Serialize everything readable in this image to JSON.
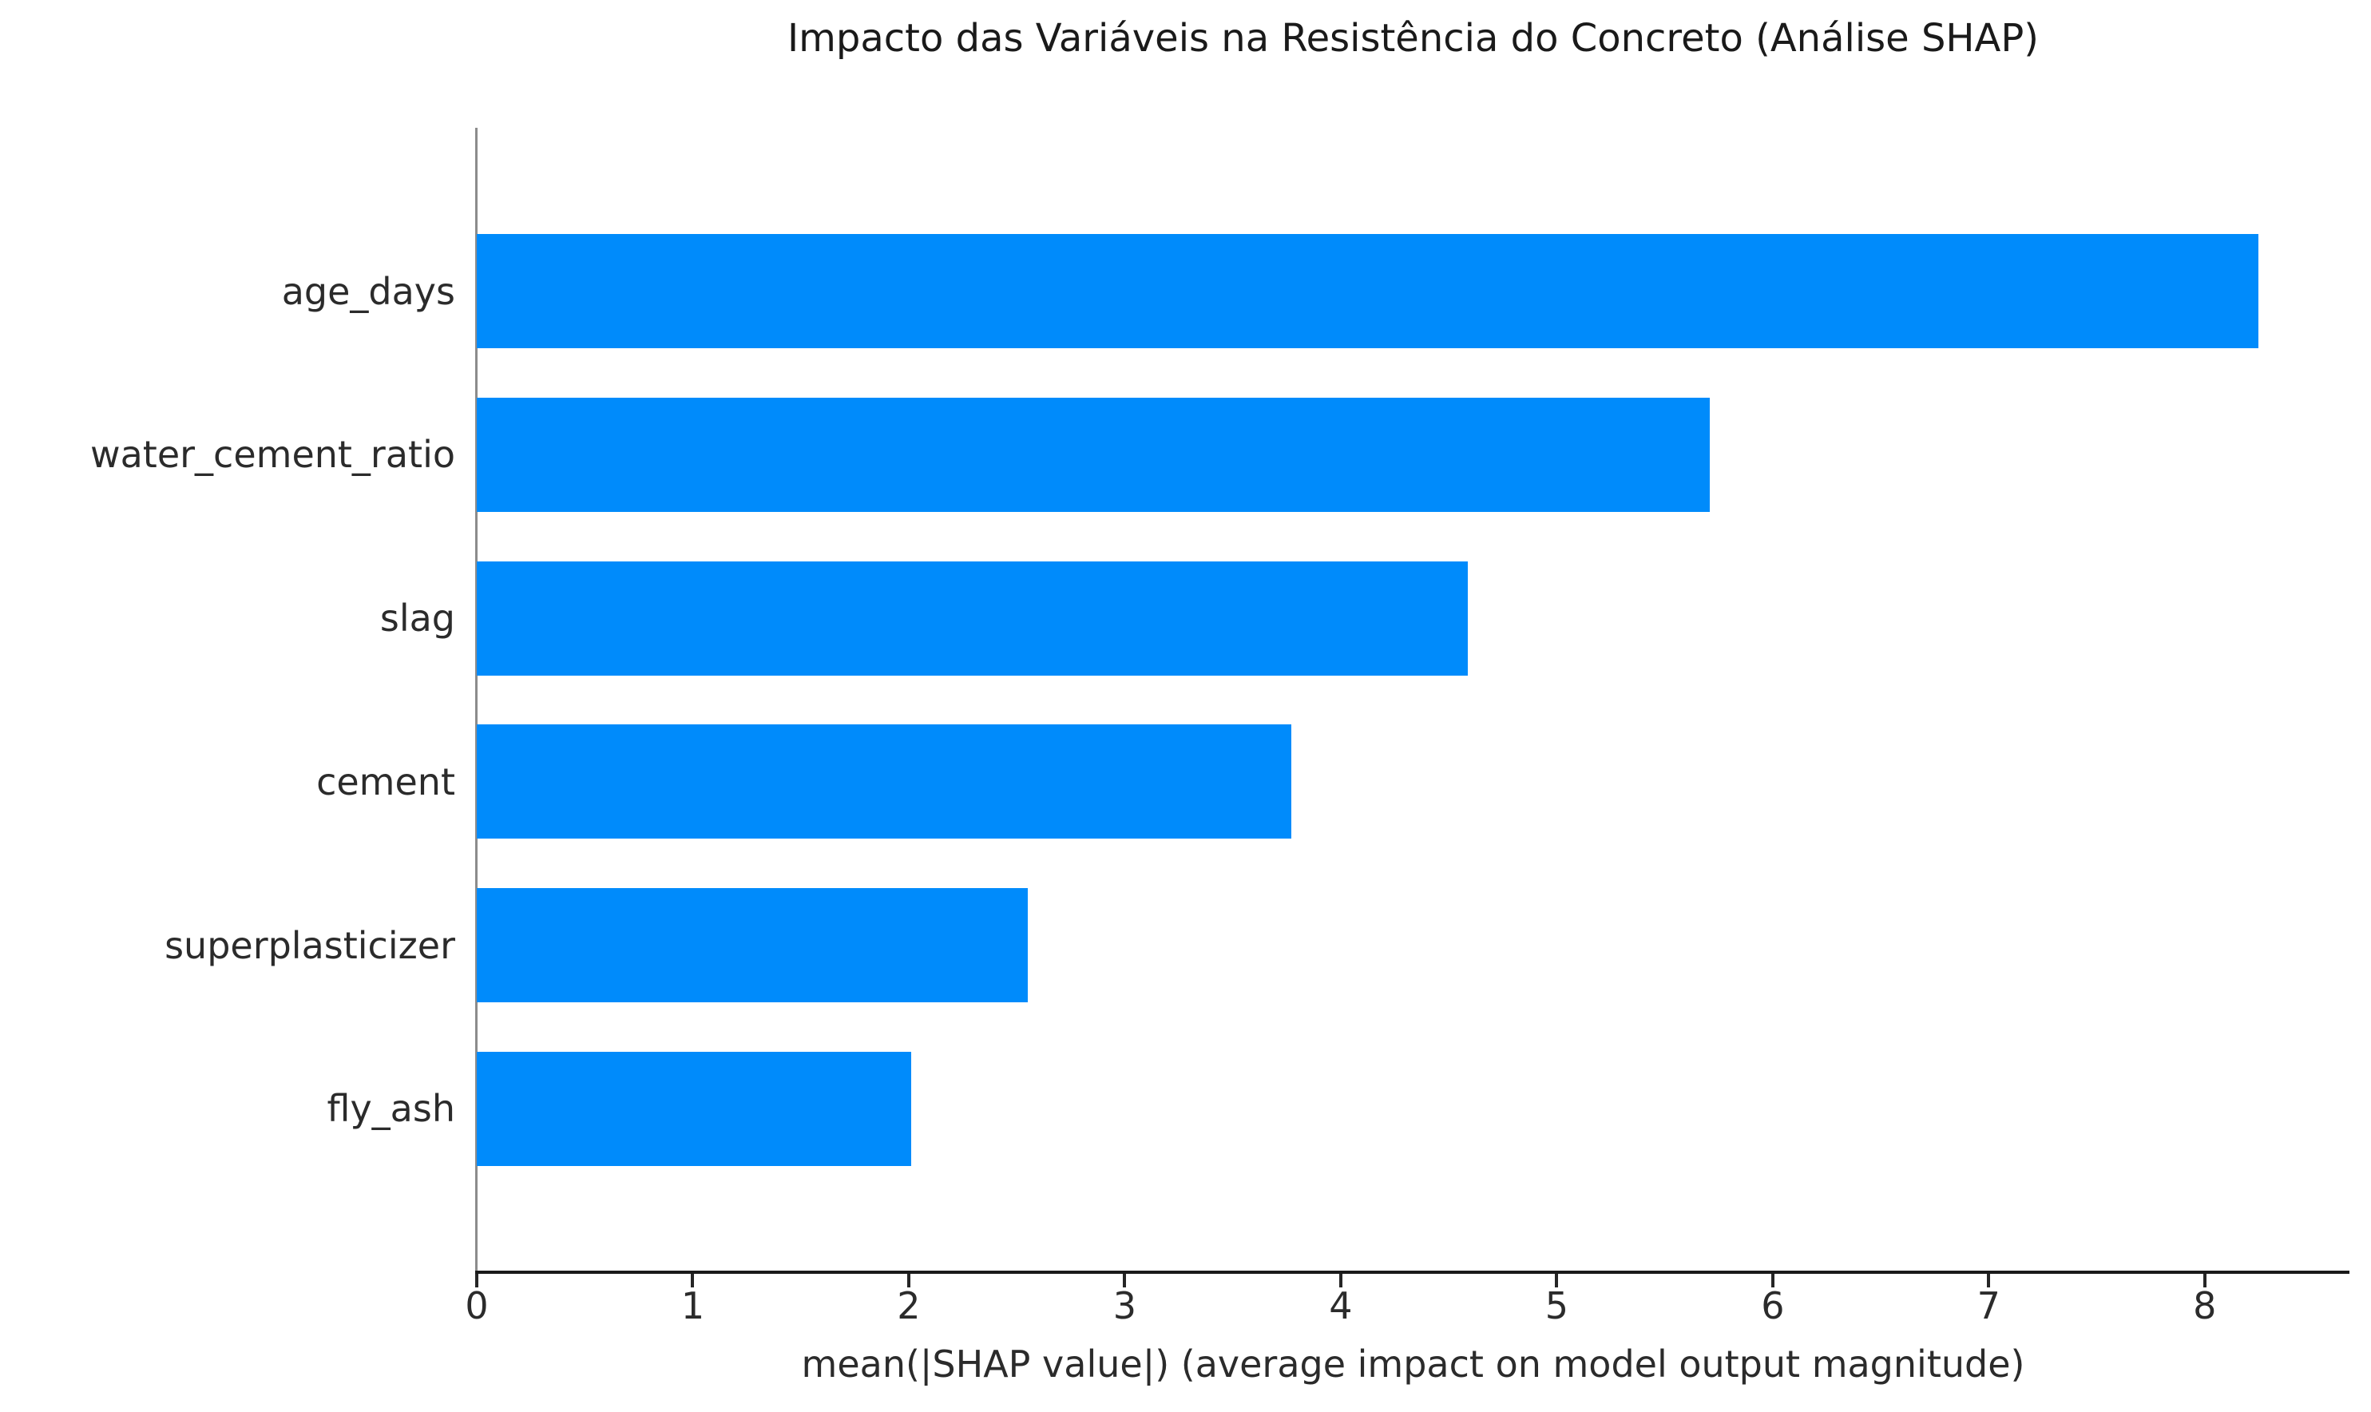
{
  "chart_data": {
    "type": "bar",
    "orientation": "horizontal",
    "title": "Impacto das Variáveis na Resistência do Concreto (Análise SHAP)",
    "xlabel": "mean(|SHAP value|) (average impact on model output magnitude)",
    "ylabel": "",
    "categories": [
      "age_days",
      "water_cement_ratio",
      "slag",
      "cement",
      "superplasticizer",
      "fly_ash"
    ],
    "values": [
      8.25,
      5.71,
      4.59,
      3.77,
      2.55,
      2.01
    ],
    "xlim": [
      0,
      8.67
    ],
    "xticks": [
      "0",
      "1",
      "2",
      "3",
      "4",
      "5",
      "6",
      "7",
      "8"
    ],
    "grid": false,
    "legend_position": "none",
    "bar_color": "#008bfb",
    "axis_color": "#1a1a1a",
    "left_spine_color": "#8c8c8c",
    "text_color": "#2b2b2b"
  }
}
